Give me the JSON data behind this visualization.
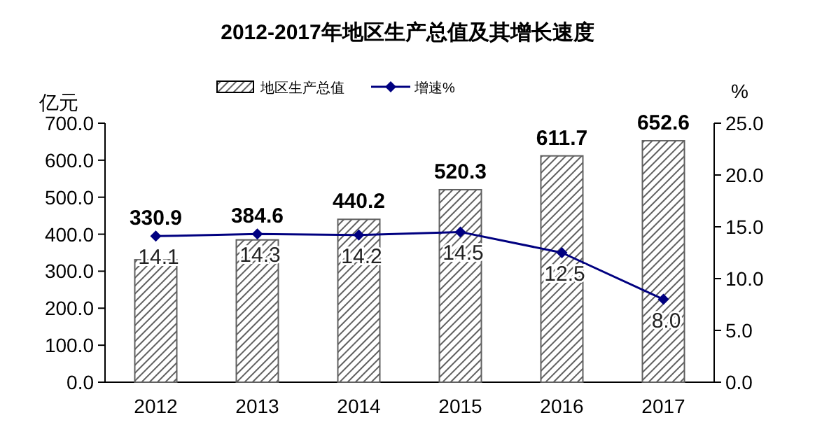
{
  "chart_data": {
    "type": "bar",
    "title": "2012-2017年地区生产总值及其增长速度",
    "ylabel": "亿元",
    "y2label": "%",
    "categories": [
      "2012",
      "2013",
      "2014",
      "2015",
      "2016",
      "2017"
    ],
    "series": [
      {
        "name": "地区生产总值",
        "color": "#606060",
        "values": [
          330.9,
          384.6,
          440.2,
          520.3,
          611.7,
          652.6
        ],
        "value_labels": [
          "330.9",
          "384.6",
          "440.2",
          "520.3",
          "611.7",
          "652.6"
        ]
      },
      {
        "name": "增速%",
        "type": "line",
        "axis": "y2",
        "color": "#000080",
        "marker": "diamond",
        "values": [
          14.1,
          14.3,
          14.2,
          14.5,
          12.5,
          8.0
        ],
        "value_labels": [
          "14.1",
          "14.3",
          "14.2",
          "14.5",
          "12.5",
          "8.0"
        ]
      }
    ],
    "ylim": [
      0,
      700
    ],
    "yticks": [
      {
        "value": 0,
        "label": "0.0"
      },
      {
        "value": 100,
        "label": "100.0"
      },
      {
        "value": 200,
        "label": "200.0"
      },
      {
        "value": 300,
        "label": "300.0"
      },
      {
        "value": 400,
        "label": "400.0"
      },
      {
        "value": 500,
        "label": "500.0"
      },
      {
        "value": 600,
        "label": "600.0"
      },
      {
        "value": 700,
        "label": "700.0"
      }
    ],
    "y2lim": [
      0,
      25
    ],
    "y2ticks": [
      {
        "value": 0,
        "label": "0.0"
      },
      {
        "value": 5,
        "label": "5.0"
      },
      {
        "value": 10,
        "label": "10.0"
      },
      {
        "value": 15,
        "label": "15.0"
      },
      {
        "value": 20,
        "label": "20.0"
      },
      {
        "value": 25,
        "label": "25.0"
      }
    ],
    "legend": "top",
    "grid": false
  }
}
